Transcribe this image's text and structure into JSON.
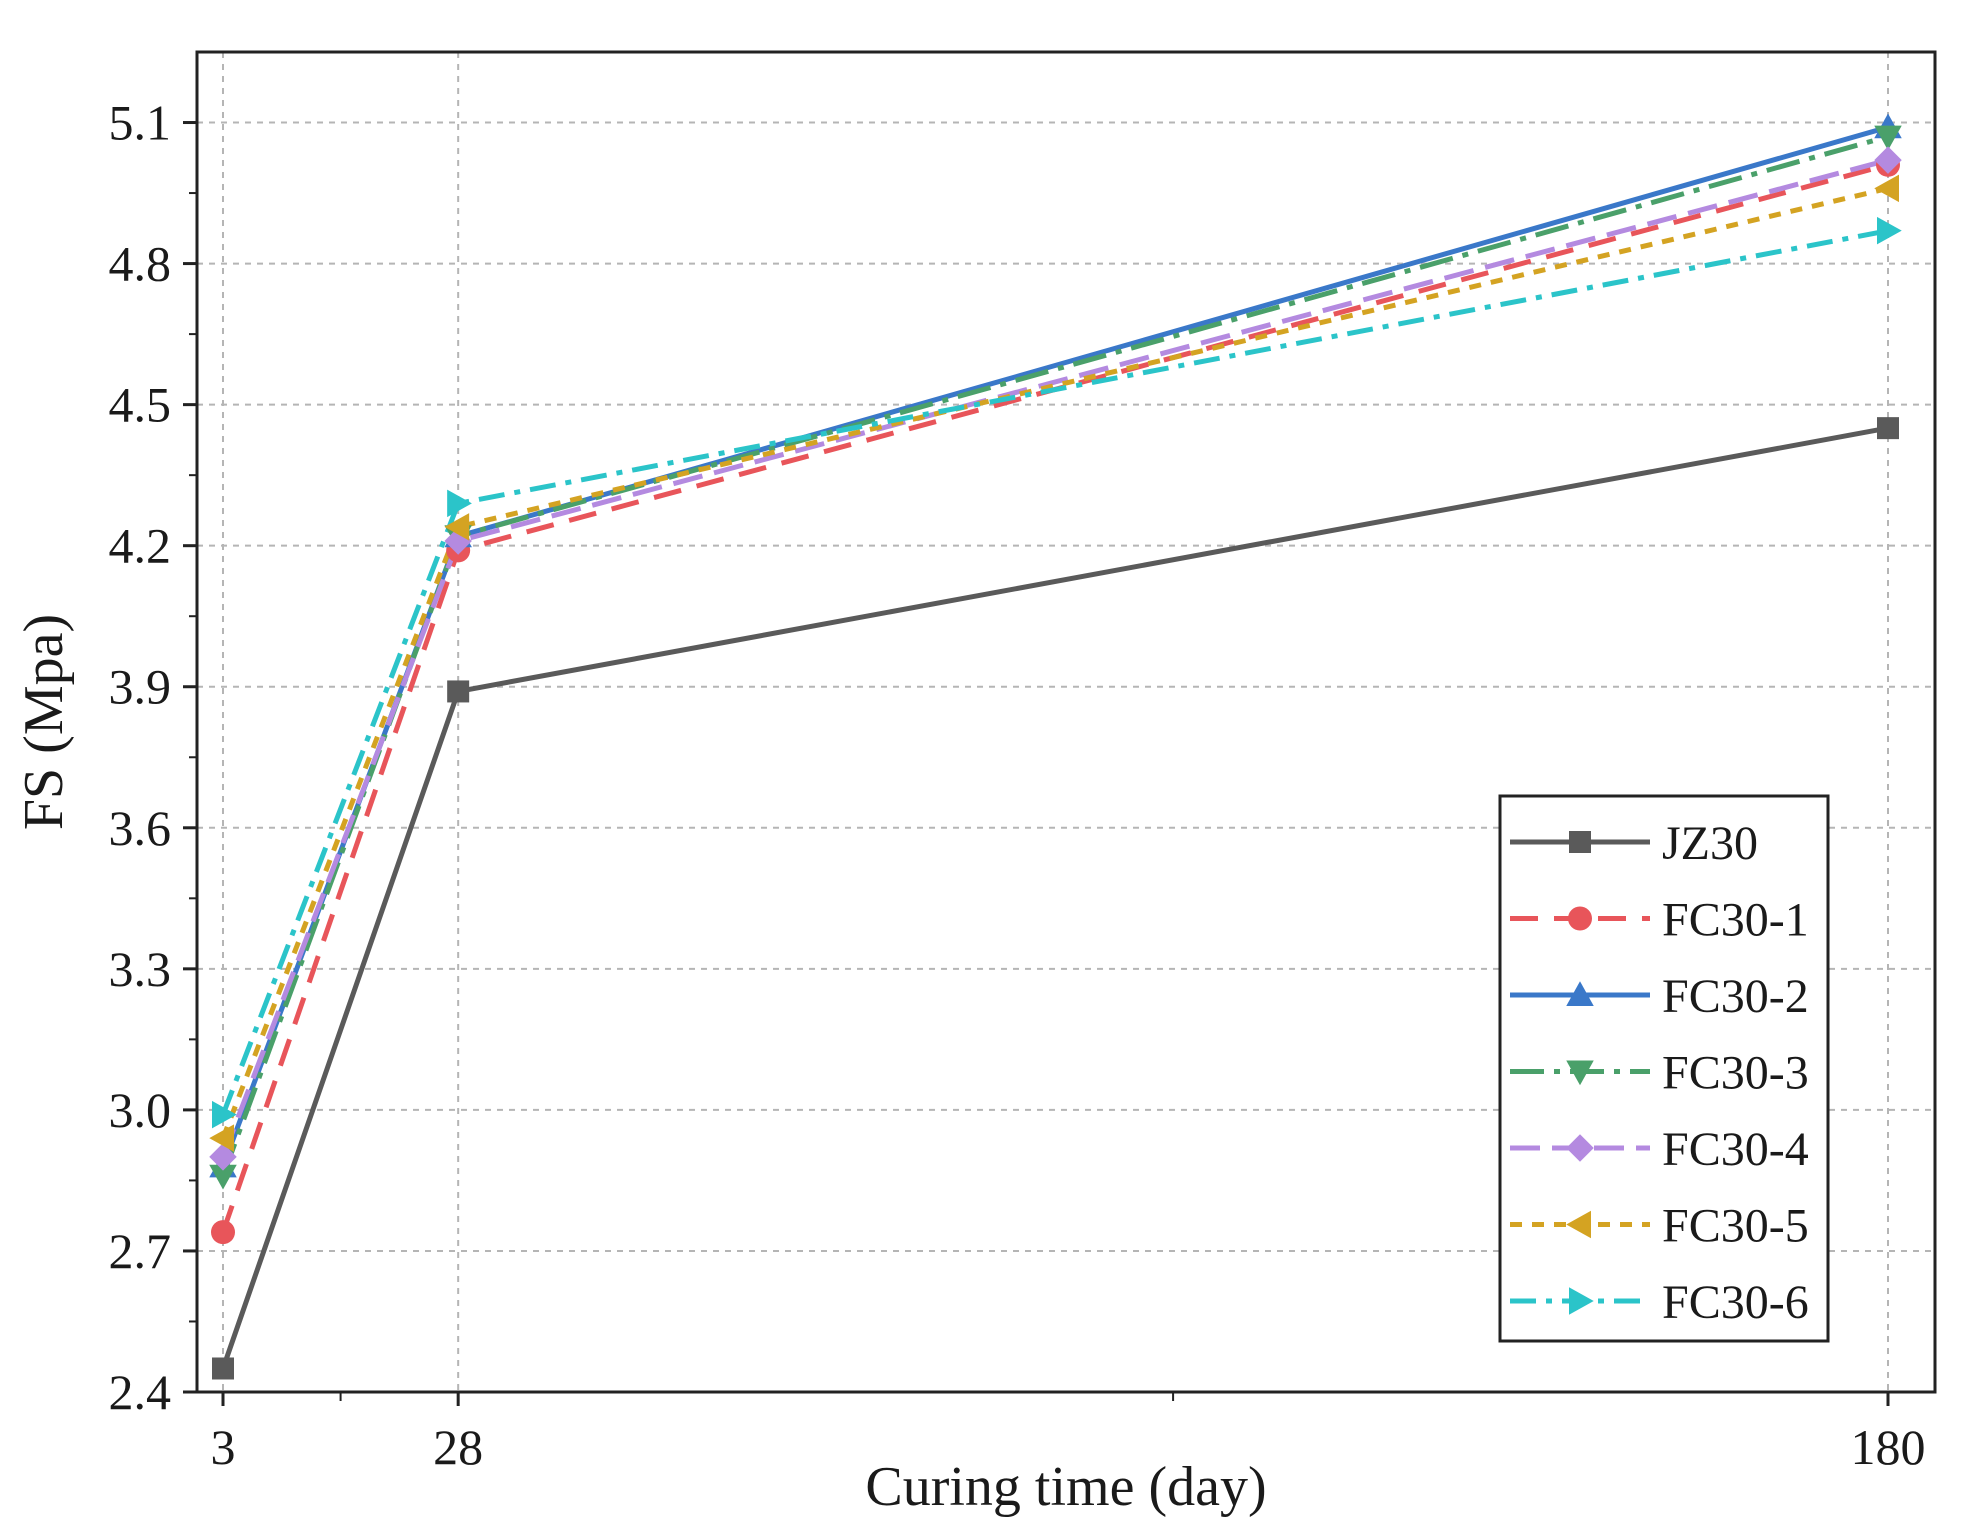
{
  "chart_data": {
    "type": "line",
    "title": "",
    "xlabel": "Curing time (day)",
    "ylabel": "FS (Mpa)",
    "x": [
      3,
      28,
      180
    ],
    "xtick_labels": [
      "3",
      "28",
      "180"
    ],
    "ytick_labels": [
      "2.4",
      "2.7",
      "3.0",
      "3.3",
      "3.6",
      "3.9",
      "4.2",
      "4.5",
      "4.8",
      "5.1"
    ],
    "yticks": [
      2.4,
      2.7,
      3.0,
      3.3,
      3.6,
      3.9,
      4.2,
      4.5,
      4.8,
      5.1
    ],
    "xlim": [
      0,
      185
    ],
    "ylim": [
      2.4,
      5.25
    ],
    "grid": true,
    "legend_position": "bottom-right",
    "series": [
      {
        "name": "JZ30",
        "values": [
          2.45,
          3.89,
          4.45
        ],
        "color": "#5a5a5a",
        "marker": "square",
        "dash": ""
      },
      {
        "name": "FC30-1",
        "values": [
          2.74,
          4.19,
          5.01
        ],
        "color": "#e8555a",
        "marker": "circle",
        "dash": "28,16"
      },
      {
        "name": "FC30-2",
        "values": [
          2.88,
          4.22,
          5.09
        ],
        "color": "#3a78c9",
        "marker": "triangle-up",
        "dash": ""
      },
      {
        "name": "FC30-3",
        "values": [
          2.86,
          4.22,
          5.07
        ],
        "color": "#4aa06a",
        "marker": "triangle-down",
        "dash": "34,10,6,10"
      },
      {
        "name": "FC30-4",
        "values": [
          2.9,
          4.21,
          5.02
        ],
        "color": "#b48ae0",
        "marker": "diamond",
        "dash": "30,12"
      },
      {
        "name": "FC30-5",
        "values": [
          2.94,
          4.24,
          4.96
        ],
        "color": "#d4a322",
        "marker": "triangle-left",
        "dash": "12,10"
      },
      {
        "name": "FC30-6",
        "values": [
          2.99,
          4.29,
          4.87
        ],
        "color": "#2bc4c9",
        "marker": "triangle-right",
        "dash": "26,10,6,10"
      }
    ]
  }
}
